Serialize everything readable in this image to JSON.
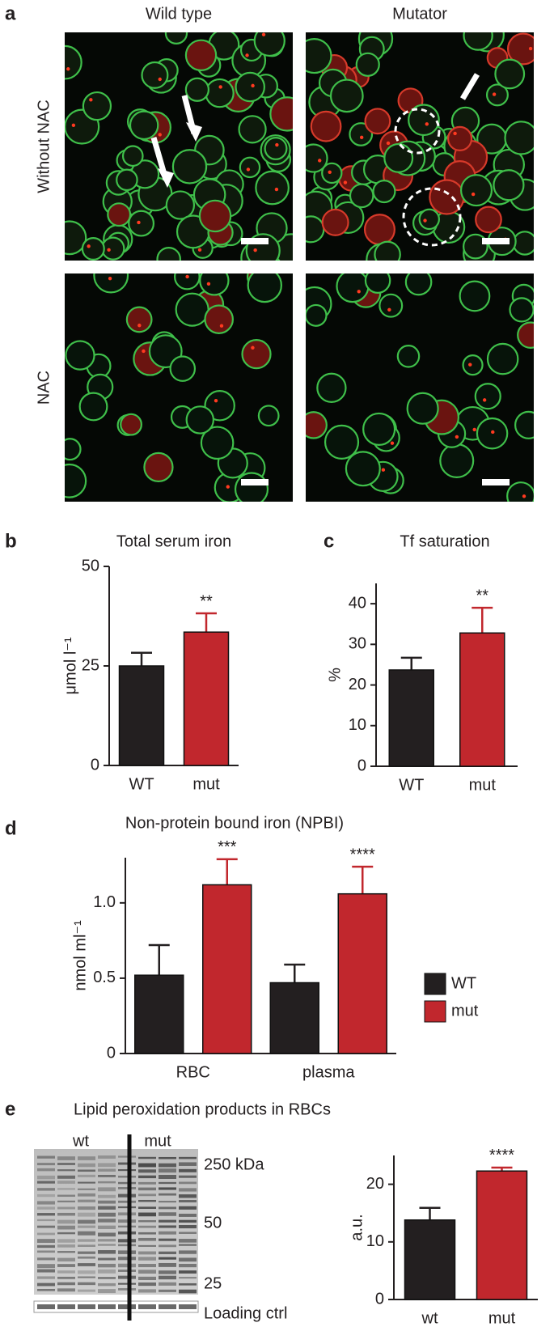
{
  "figure": {
    "a": {
      "label": "a",
      "columns": [
        "Wild type",
        "Mutator"
      ],
      "rows": [
        "Without NAC",
        "NAC"
      ]
    },
    "e": {
      "label": "e",
      "title": "Lipid peroxidation products in RBCs",
      "lanes": [
        "wt",
        "mut"
      ],
      "markers": [
        "250 kDa",
        "50",
        "25"
      ],
      "loading": "Loading ctrl"
    }
  },
  "chart_data": [
    {
      "type": "bar",
      "label": "b",
      "title": "Total serum iron",
      "y_label": "μmol l⁻¹",
      "categories": [
        "WT",
        "mut"
      ],
      "values": [
        25,
        33.5
      ],
      "errors": [
        3.3,
        4.7
      ],
      "colors": [
        "#231f20",
        "#c1272d"
      ],
      "significance": [
        null,
        "**"
      ],
      "ylim": [
        0,
        50
      ],
      "yticks": [
        0,
        25,
        50
      ]
    },
    {
      "type": "bar",
      "label": "c",
      "title": "Tf saturation",
      "y_label": "%",
      "categories": [
        "WT",
        "mut"
      ],
      "values": [
        23.7,
        32.8
      ],
      "errors": [
        3,
        6.2
      ],
      "colors": [
        "#231f20",
        "#c1272d"
      ],
      "significance": [
        null,
        "**"
      ],
      "ylim": [
        0,
        45
      ],
      "yticks": [
        0,
        10,
        20,
        30,
        40
      ]
    },
    {
      "type": "bar",
      "label": "d",
      "title": "Non-protein bound iron (NPBI)",
      "y_label": "nmol ml⁻¹",
      "categories": [
        "RBC",
        "plasma"
      ],
      "series": [
        {
          "name": "WT",
          "color": "#231f20",
          "values": [
            0.52,
            0.47
          ],
          "errors": [
            0.2,
            0.12
          ],
          "significance": [
            null,
            null
          ]
        },
        {
          "name": "mut",
          "color": "#c1272d",
          "values": [
            1.12,
            1.06
          ],
          "errors": [
            0.17,
            0.18
          ],
          "significance": [
            "***",
            "****"
          ]
        }
      ],
      "ylim": [
        0,
        1.3
      ],
      "yticks": [
        0,
        0.5,
        {
          "value": 1,
          "label": "1.0"
        }
      ],
      "legend": "right"
    },
    {
      "type": "bar",
      "label": null,
      "title": null,
      "y_label": "a.u.",
      "categories": [
        "wt",
        "mut"
      ],
      "values": [
        13.8,
        22.3
      ],
      "errors": [
        2.1,
        0.6
      ],
      "colors": [
        "#231f20",
        "#c1272d"
      ],
      "significance": [
        null,
        "****"
      ],
      "ylim": [
        0,
        25
      ],
      "yticks": [
        0,
        10,
        20
      ]
    }
  ]
}
